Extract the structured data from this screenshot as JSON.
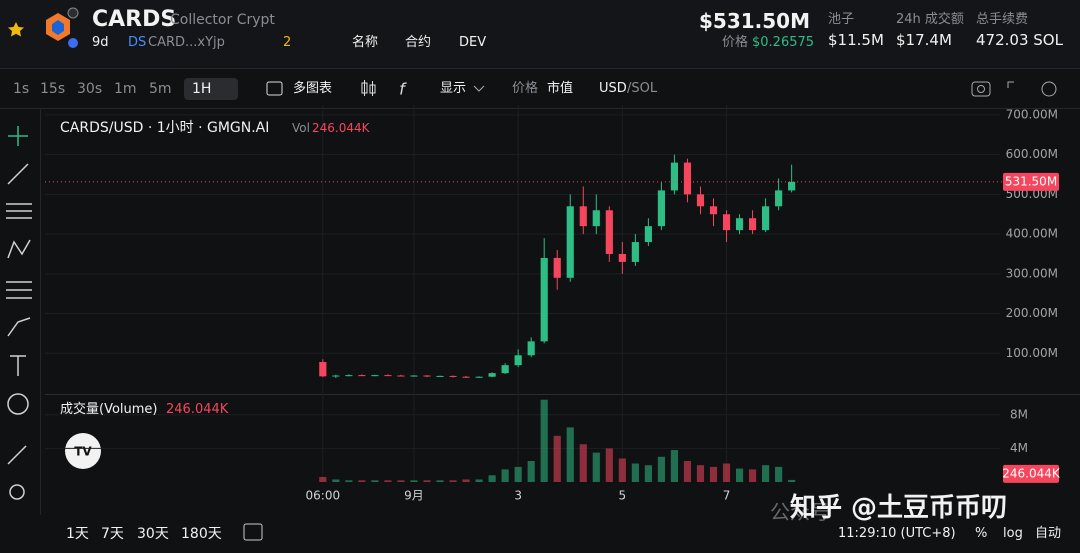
{
  "header": {
    "title": "CARDS",
    "subtitle": "Collector Crypt",
    "age": "9d",
    "dex": "DS",
    "address": "CARD...xYjp",
    "holders": "2",
    "links": [
      "名称",
      "合约",
      "DEV"
    ],
    "price_mcap": "$531.50M",
    "price_label": "价格",
    "price": "$0.26575",
    "stats": [
      {
        "label": "池子",
        "value": "$11.5M"
      },
      {
        "label": "24h 成交额",
        "value": "$17.4M"
      },
      {
        "label": "总手续费",
        "value": "472.03 SOL"
      }
    ]
  },
  "toolbar": {
    "intervals": [
      "1s",
      "15s",
      "30s",
      "1m",
      "5m"
    ],
    "active_interval": "1H",
    "multi_chart": "多图表",
    "display": "显示",
    "price_toggle": "价格",
    "mcap_toggle": "市值",
    "currency": "USD",
    "alt_currency": "/SOL"
  },
  "chart_data": {
    "type": "candlestick",
    "legend_title": "CARDS/USD · 1小时 · GMGN.AI",
    "vol_label": "Vol",
    "up_color": "#2ebd85",
    "down_color": "#f6465d",
    "grid": true,
    "x": [
      -42,
      -36,
      -30,
      -24,
      -18,
      -12,
      -6,
      0,
      6,
      12,
      18,
      24,
      30,
      36,
      42,
      48,
      54,
      60,
      66,
      72,
      78,
      84,
      90,
      96,
      102,
      108,
      114,
      120,
      126,
      132,
      138,
      144,
      150,
      156,
      162,
      168,
      174
    ],
    "open": [
      78,
      42,
      44,
      45,
      44,
      45,
      44,
      43,
      44,
      42,
      43,
      41,
      40,
      41,
      50,
      70,
      95,
      130,
      340,
      290,
      470,
      420,
      460,
      350,
      330,
      380,
      420,
      510,
      580,
      500,
      470,
      450,
      410,
      440,
      410,
      470,
      510
    ],
    "high": [
      85,
      46,
      47,
      47,
      46,
      47,
      46,
      45,
      45,
      44,
      44,
      43,
      42,
      52,
      75,
      110,
      140,
      390,
      360,
      500,
      520,
      500,
      470,
      380,
      400,
      440,
      530,
      600,
      590,
      520,
      490,
      460,
      450,
      460,
      490,
      540,
      575
    ],
    "low": [
      40,
      38,
      42,
      43,
      42,
      43,
      42,
      41,
      40,
      40,
      39,
      38,
      38,
      40,
      48,
      65,
      90,
      125,
      260,
      280,
      400,
      400,
      330,
      300,
      320,
      370,
      410,
      500,
      480,
      450,
      420,
      380,
      400,
      400,
      405,
      460,
      505
    ],
    "close": [
      42,
      44,
      45,
      44,
      45,
      44,
      43,
      44,
      42,
      43,
      41,
      40,
      41,
      50,
      70,
      95,
      130,
      340,
      290,
      470,
      420,
      460,
      350,
      330,
      380,
      420,
      510,
      580,
      500,
      470,
      450,
      410,
      440,
      410,
      470,
      510,
      531.5
    ],
    "xlim": [
      -170,
      270
    ],
    "xticks": [
      {
        "value": -42,
        "label": "06:00"
      },
      {
        "value": 0,
        "label": "9月"
      },
      {
        "value": 48,
        "label": "3"
      },
      {
        "value": 96,
        "label": "5"
      },
      {
        "value": 144,
        "label": "7"
      }
    ],
    "ylim": [
      0,
      725
    ],
    "yticks": [
      {
        "value": 100,
        "label": "100.00M"
      },
      {
        "value": 200,
        "label": "200.00M"
      },
      {
        "value": 300,
        "label": "300.00M"
      },
      {
        "value": 400,
        "label": "400.00M"
      },
      {
        "value": 500,
        "label": "500.00M"
      },
      {
        "value": 600,
        "label": "600.00M"
      },
      {
        "value": 700,
        "label": "700.00M"
      }
    ],
    "last_price": {
      "value": 531.5,
      "label": "531.50M"
    },
    "volume": {
      "title": "成交量(Volume)",
      "values": [
        0.6,
        0.3,
        0.2,
        0.2,
        0.2,
        0.2,
        0.2,
        0.2,
        0.2,
        0.2,
        0.2,
        0.3,
        0.3,
        0.8,
        1.5,
        1.8,
        2.5,
        9.8,
        5.5,
        6.5,
        4.5,
        3.5,
        4.0,
        2.8,
        2.2,
        2.0,
        3.0,
        3.8,
        2.5,
        2.0,
        1.8,
        2.2,
        1.6,
        1.5,
        2.0,
        1.8,
        0.246044
      ],
      "ylim": [
        0,
        10
      ],
      "yticks": [
        {
          "value": 4,
          "label": "4M"
        },
        {
          "value": 8,
          "label": "8M"
        }
      ],
      "last": {
        "value": 0.246044,
        "label": "246.044K"
      }
    }
  },
  "footer": {
    "ranges": [
      "1天",
      "7天",
      "30天",
      "180天"
    ],
    "time": "11:29:10 (UTC+8)",
    "percent": "%",
    "log": "log",
    "auto": "自动"
  },
  "watermark": {
    "site": "知乎 @土豆币币叨",
    "account": "公众号"
  }
}
